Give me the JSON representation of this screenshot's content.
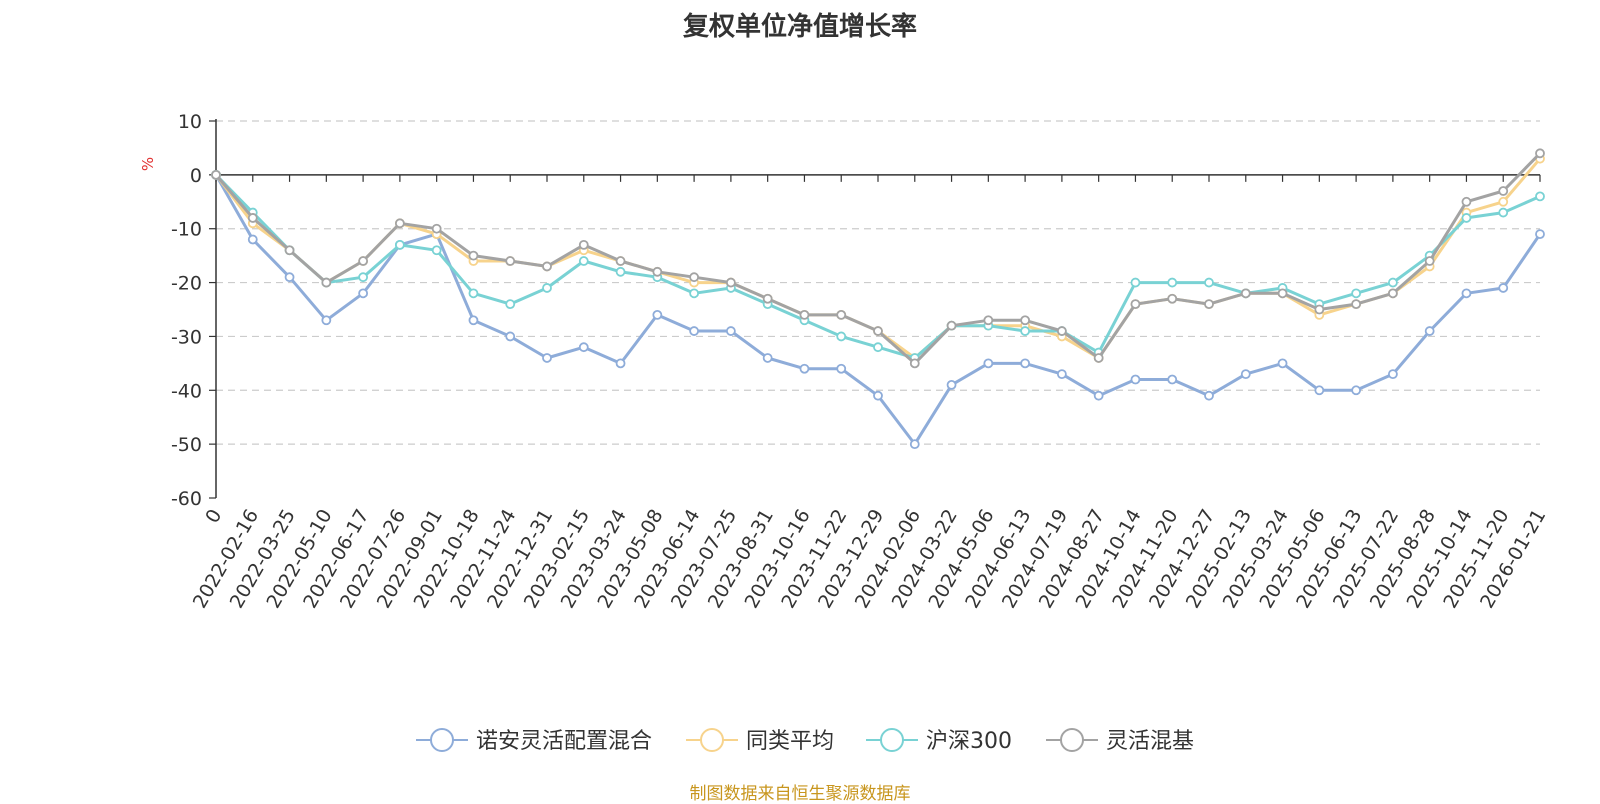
{
  "title": "复权单位净值增长率",
  "source": "制图数据来自恒生聚源数据库",
  "chart_data": {
    "type": "line",
    "title": "复权单位净值增长率",
    "ylabel": "%",
    "ylim": [
      -60,
      10
    ],
    "yticks": [
      10,
      0,
      -10,
      -20,
      -30,
      -40,
      -50,
      -60
    ],
    "grid": true,
    "legend_position": "bottom-center",
    "x": [
      "0",
      "2022-02-16",
      "2022-03-25",
      "2022-05-10",
      "2022-06-17",
      "2022-07-26",
      "2022-09-01",
      "2022-10-18",
      "2022-11-24",
      "2022-12-31",
      "2023-02-15",
      "2023-03-24",
      "2023-05-08",
      "2023-06-14",
      "2023-07-25",
      "2023-08-31",
      "2023-10-16",
      "2023-11-22",
      "2023-12-29",
      "2024-02-06",
      "2024-03-22",
      "2024-05-06",
      "2024-06-13",
      "2024-07-19",
      "2024-08-27",
      "2024-10-14",
      "2024-11-20",
      "2024-12-27",
      "2025-02-13",
      "2025-03-24",
      "2025-05-06",
      "2025-06-13",
      "2025-07-22",
      "2025-08-28",
      "2025-10-14",
      "2025-11-20",
      "2026-01-21"
    ],
    "series": [
      {
        "name": "诺安灵活配置混合",
        "color": "#8eacd9",
        "values": [
          0,
          -12,
          -19,
          -27,
          -22,
          -13,
          -11,
          -27,
          -30,
          -34,
          -32,
          -35,
          -26,
          -29,
          -29,
          -34,
          -36,
          -36,
          -41,
          -50,
          -39,
          -35,
          -35,
          -37,
          -41,
          -38,
          -38,
          -41,
          -37,
          -35,
          -40,
          -40,
          -37,
          -29,
          -22,
          -21,
          -11
        ]
      },
      {
        "name": "同类平均",
        "color": "#f7d38c",
        "values": [
          0,
          -9,
          -14,
          -20,
          -16,
          -9,
          -11,
          -16,
          -16,
          -17,
          -14,
          -16,
          -18,
          -20,
          -20,
          -23,
          -26,
          -26,
          -29,
          -34,
          -28,
          -28,
          -28,
          -30,
          -34,
          -24,
          -23,
          -24,
          -22,
          -22,
          -26,
          -24,
          -22,
          -17,
          -7,
          -5,
          3
        ]
      },
      {
        "name": "沪深300",
        "color": "#79d2d4",
        "values": [
          0,
          -7,
          -14,
          -20,
          -19,
          -13,
          -14,
          -22,
          -24,
          -21,
          -16,
          -18,
          -19,
          -22,
          -21,
          -24,
          -27,
          -30,
          -32,
          -34,
          -28,
          -28,
          -29,
          -29,
          -33,
          -20,
          -20,
          -20,
          -22,
          -21,
          -24,
          -22,
          -20,
          -15,
          -8,
          -7,
          -4
        ]
      },
      {
        "name": "灵活混基",
        "color": "#a3a3a3",
        "values": [
          0,
          -8,
          -14,
          -20,
          -16,
          -9,
          -10,
          -15,
          -16,
          -17,
          -13,
          -16,
          -18,
          -19,
          -20,
          -23,
          -26,
          -26,
          -29,
          -35,
          -28,
          -27,
          -27,
          -29,
          -34,
          -24,
          -23,
          -24,
          -22,
          -22,
          -25,
          -24,
          -22,
          -16,
          -5,
          -3,
          4
        ]
      }
    ]
  }
}
